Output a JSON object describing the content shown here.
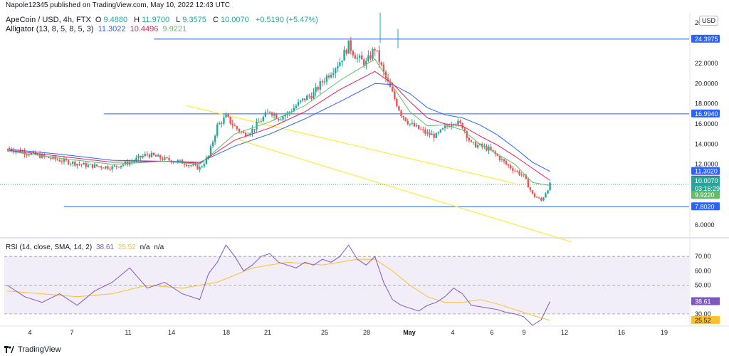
{
  "attribution": "Napole12345 published on TradingView.com, May 10, 2022 12:43 UTC",
  "header": {
    "symbol": "ApeCoin / USD, 4h, FTX",
    "open_label": "O",
    "open": "9.4880",
    "high_label": "H",
    "high": "11.9700",
    "low_label": "L",
    "low": "9.3575",
    "close_label": "C",
    "close": "10.0070",
    "change": "+0.5190 (+5.47%)",
    "alligator_label": "Alligator (13, 8, 5, 8, 5, 3)",
    "alligator_jaw": "11.3022",
    "alligator_teeth": "10.4496",
    "alligator_lips": "9.9221"
  },
  "currency_button": "USD",
  "rsi_header": {
    "label": "RSI (14, close, SMA, 14, 2)",
    "rsi": "38.61",
    "sma": "25.52",
    "na1": "n/a",
    "na2": "n/a"
  },
  "branding": "TradingView",
  "colors": {
    "up": "#26a69a",
    "down": "#ef5350",
    "hline": "#2962ff",
    "channel": "#ffeb3b",
    "jaw": "#2962ff",
    "teeth": "#e91e63",
    "lips": "#66bb6a",
    "rsi": "#7e57c2",
    "rsi_sma": "#fbc02d",
    "rsi_band": "#ede7f6",
    "current": "#26a69a"
  },
  "chart_data": [
    {
      "type": "candlestick",
      "title": "ApeCoin / USD, 4h, FTX",
      "x_ticks": [
        "4",
        "7",
        "11",
        "14",
        "18",
        "21",
        "25",
        "28",
        "May",
        "4",
        "6",
        "9",
        "12",
        "16",
        "19"
      ],
      "y_ticks": [
        "26.0000",
        "22.0000",
        "20.0000",
        "18.0000",
        "16.0000",
        "14.0000",
        "12.0000",
        "6.0000"
      ],
      "ylim": [
        5.0,
        27.0
      ],
      "price_labels": [
        {
          "value": "24.3975",
          "kind": "level"
        },
        {
          "value": "16.9940",
          "kind": "level"
        },
        {
          "value": "11.3020",
          "kind": "jaw"
        },
        {
          "value": "10.4495",
          "kind": "teeth"
        },
        {
          "value": "10.0070",
          "kind": "current",
          "countdown": "03:16:29"
        },
        {
          "value": "9.9220",
          "kind": "lips"
        },
        {
          "value": "7.8020",
          "kind": "level"
        }
      ],
      "horizontal_levels": [
        24.3975,
        16.994,
        7.802
      ],
      "descending_channel": {
        "upper": [
          [
            20.5,
            17.8
          ],
          [
            58.0,
            10.1
          ]
        ],
        "lower": [
          [
            26.5,
            14.4
          ],
          [
            64.5,
            4.3
          ]
        ]
      },
      "series_price_path": [
        [
          0,
          13.6
        ],
        [
          3,
          13.0
        ],
        [
          6,
          12.4
        ],
        [
          9,
          11.9
        ],
        [
          12,
          11.7
        ],
        [
          14,
          12.2
        ],
        [
          16,
          13.0
        ],
        [
          18,
          12.5
        ],
        [
          20,
          12.2
        ],
        [
          22,
          11.6
        ],
        [
          23,
          12.8
        ],
        [
          24,
          15.8
        ],
        [
          25,
          16.7
        ],
        [
          26,
          15.7
        ],
        [
          27,
          15.0
        ],
        [
          28,
          15.4
        ],
        [
          29,
          16.4
        ],
        [
          30,
          17.3
        ],
        [
          31,
          16.6
        ],
        [
          32,
          17.0
        ],
        [
          33,
          17.8
        ],
        [
          34,
          18.5
        ],
        [
          35,
          19.0
        ],
        [
          36,
          20.2
        ],
        [
          37,
          21.2
        ],
        [
          38,
          22.2
        ],
        [
          39,
          23.8
        ],
        [
          40,
          22.5
        ],
        [
          41,
          22.0
        ],
        [
          42,
          23.5
        ],
        [
          43,
          21.0
        ],
        [
          44,
          19.0
        ],
        [
          45,
          17.0
        ],
        [
          46,
          16.0
        ],
        [
          47,
          15.5
        ],
        [
          48,
          15.0
        ],
        [
          49,
          14.8
        ],
        [
          50,
          15.6
        ],
        [
          51,
          16.3
        ],
        [
          52,
          15.8
        ],
        [
          53,
          14.0
        ],
        [
          54,
          13.8
        ],
        [
          55,
          13.5
        ],
        [
          56,
          12.8
        ],
        [
          57,
          12.0
        ],
        [
          58,
          11.4
        ],
        [
          59,
          10.8
        ],
        [
          60,
          9.0
        ],
        [
          61,
          8.4
        ],
        [
          62,
          10.0
        ]
      ],
      "alligator": {
        "jaw": [
          [
            0,
            13.5
          ],
          [
            6,
            13.0
          ],
          [
            12,
            12.4
          ],
          [
            18,
            12.3
          ],
          [
            22,
            12.2
          ],
          [
            26,
            13.8
          ],
          [
            30,
            15.0
          ],
          [
            34,
            16.5
          ],
          [
            38,
            18.2
          ],
          [
            42,
            20.0
          ],
          [
            44,
            19.9
          ],
          [
            46,
            19.0
          ],
          [
            48,
            17.6
          ],
          [
            50,
            16.9
          ],
          [
            52,
            16.6
          ],
          [
            54,
            15.9
          ],
          [
            56,
            14.9
          ],
          [
            58,
            13.6
          ],
          [
            60,
            12.2
          ],
          [
            62,
            11.3
          ]
        ],
        "teeth": [
          [
            0,
            13.4
          ],
          [
            6,
            12.8
          ],
          [
            12,
            12.2
          ],
          [
            18,
            12.3
          ],
          [
            22,
            12.1
          ],
          [
            26,
            14.4
          ],
          [
            30,
            15.6
          ],
          [
            34,
            17.2
          ],
          [
            38,
            19.4
          ],
          [
            42,
            21.2
          ],
          [
            44,
            20.0
          ],
          [
            46,
            18.2
          ],
          [
            48,
            16.6
          ],
          [
            50,
            16.0
          ],
          [
            52,
            15.8
          ],
          [
            54,
            14.8
          ],
          [
            56,
            13.9
          ],
          [
            58,
            12.8
          ],
          [
            60,
            11.6
          ],
          [
            62,
            10.4
          ]
        ],
        "lips": [
          [
            0,
            13.3
          ],
          [
            6,
            12.6
          ],
          [
            12,
            12.0
          ],
          [
            18,
            12.3
          ],
          [
            22,
            12.0
          ],
          [
            26,
            15.0
          ],
          [
            30,
            16.2
          ],
          [
            34,
            17.8
          ],
          [
            38,
            20.3
          ],
          [
            42,
            22.4
          ],
          [
            44,
            19.8
          ],
          [
            46,
            17.2
          ],
          [
            48,
            15.8
          ],
          [
            50,
            15.9
          ],
          [
            52,
            15.4
          ],
          [
            54,
            14.0
          ],
          [
            56,
            13.0
          ],
          [
            58,
            12.0
          ],
          [
            60,
            10.2
          ],
          [
            62,
            9.9
          ]
        ]
      }
    },
    {
      "type": "line",
      "title": "RSI (14, close, SMA, 14, 2)",
      "y_ticks": [
        "70.00",
        "60.00",
        "50.00",
        "30.00"
      ],
      "ylim": [
        23,
        81
      ],
      "band": [
        30,
        70
      ],
      "value_labels": [
        {
          "value": "38.61",
          "kind": "rsi"
        },
        {
          "value": "25.52",
          "kind": "sma"
        }
      ],
      "series": [
        {
          "name": "RSI",
          "values": [
            [
              0,
              50
            ],
            [
              2,
              42
            ],
            [
              4,
              38
            ],
            [
              6,
              44
            ],
            [
              8,
              36
            ],
            [
              10,
              46
            ],
            [
              12,
              52
            ],
            [
              14,
              62
            ],
            [
              16,
              48
            ],
            [
              18,
              52
            ],
            [
              20,
              44
            ],
            [
              22,
              40
            ],
            [
              23,
              58
            ],
            [
              24,
              66
            ],
            [
              25,
              78
            ],
            [
              26,
              70
            ],
            [
              27,
              60
            ],
            [
              28,
              64
            ],
            [
              29,
              70
            ],
            [
              30,
              72
            ],
            [
              31,
              66
            ],
            [
              32,
              64
            ],
            [
              33,
              62
            ],
            [
              34,
              66
            ],
            [
              35,
              64
            ],
            [
              36,
              68
            ],
            [
              37,
              66
            ],
            [
              38,
              70
            ],
            [
              39,
              78
            ],
            [
              40,
              68
            ],
            [
              41,
              64
            ],
            [
              42,
              70
            ],
            [
              43,
              52
            ],
            [
              44,
              40
            ],
            [
              45,
              36
            ],
            [
              46,
              34
            ],
            [
              47,
              32
            ],
            [
              48,
              36
            ],
            [
              49,
              38
            ],
            [
              50,
              42
            ],
            [
              51,
              48
            ],
            [
              52,
              44
            ],
            [
              53,
              36
            ],
            [
              54,
              35
            ],
            [
              55,
              34
            ],
            [
              56,
              33
            ],
            [
              57,
              31
            ],
            [
              58,
              30
            ],
            [
              59,
              28
            ],
            [
              60,
              22
            ],
            [
              61,
              26
            ],
            [
              62,
              38.61
            ]
          ]
        },
        {
          "name": "RSI-based MA",
          "values": [
            [
              0,
              46
            ],
            [
              4,
              44
            ],
            [
              8,
              42
            ],
            [
              12,
              44
            ],
            [
              16,
              50
            ],
            [
              20,
              48
            ],
            [
              24,
              52
            ],
            [
              28,
              62
            ],
            [
              32,
              66
            ],
            [
              36,
              64
            ],
            [
              40,
              68
            ],
            [
              42,
              68
            ],
            [
              44,
              60
            ],
            [
              46,
              50
            ],
            [
              48,
              42
            ],
            [
              50,
              38
            ],
            [
              52,
              38
            ],
            [
              54,
              40
            ],
            [
              56,
              37
            ],
            [
              58,
              33
            ],
            [
              60,
              29
            ],
            [
              62,
              25.52
            ]
          ]
        }
      ]
    }
  ]
}
